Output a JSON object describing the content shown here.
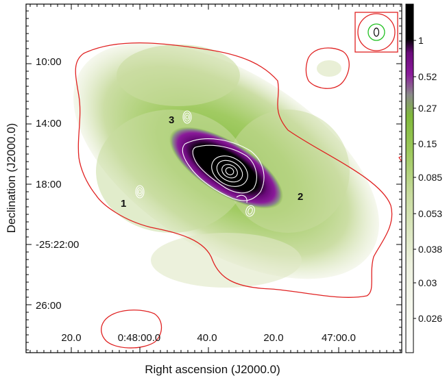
{
  "chart_data": {
    "type": "heatmap",
    "xlabel": "Right ascension (J2000.0)",
    "ylabel": "Declination (J2000.0)",
    "x_tick_labels": [
      "20.0",
      "0:48:00.0",
      "40.0",
      "20.0",
      "47:00.0"
    ],
    "y_tick_labels": [
      "10:00",
      "14:00",
      "18:00",
      "-25:22:00",
      "26:00"
    ],
    "colorbar": {
      "tick_labels": [
        "1",
        "0.52",
        "0.27",
        "0.15",
        "0.085",
        "0.053",
        "0.038",
        "0.03",
        "0.026"
      ],
      "colors": [
        "#ffffff",
        "#eef2e0",
        "#c9dca0",
        "#9cc85a",
        "#7fb83a",
        "#8a8a8a",
        "#8a1a9a",
        "#6a0a7a",
        "#000000"
      ]
    },
    "sources": [
      {
        "label": "1"
      },
      {
        "label": "2"
      },
      {
        "label": "3"
      }
    ],
    "contour_colors": {
      "outer": "#e02020",
      "inner": "#ffffff",
      "beam": "#20c020"
    }
  }
}
